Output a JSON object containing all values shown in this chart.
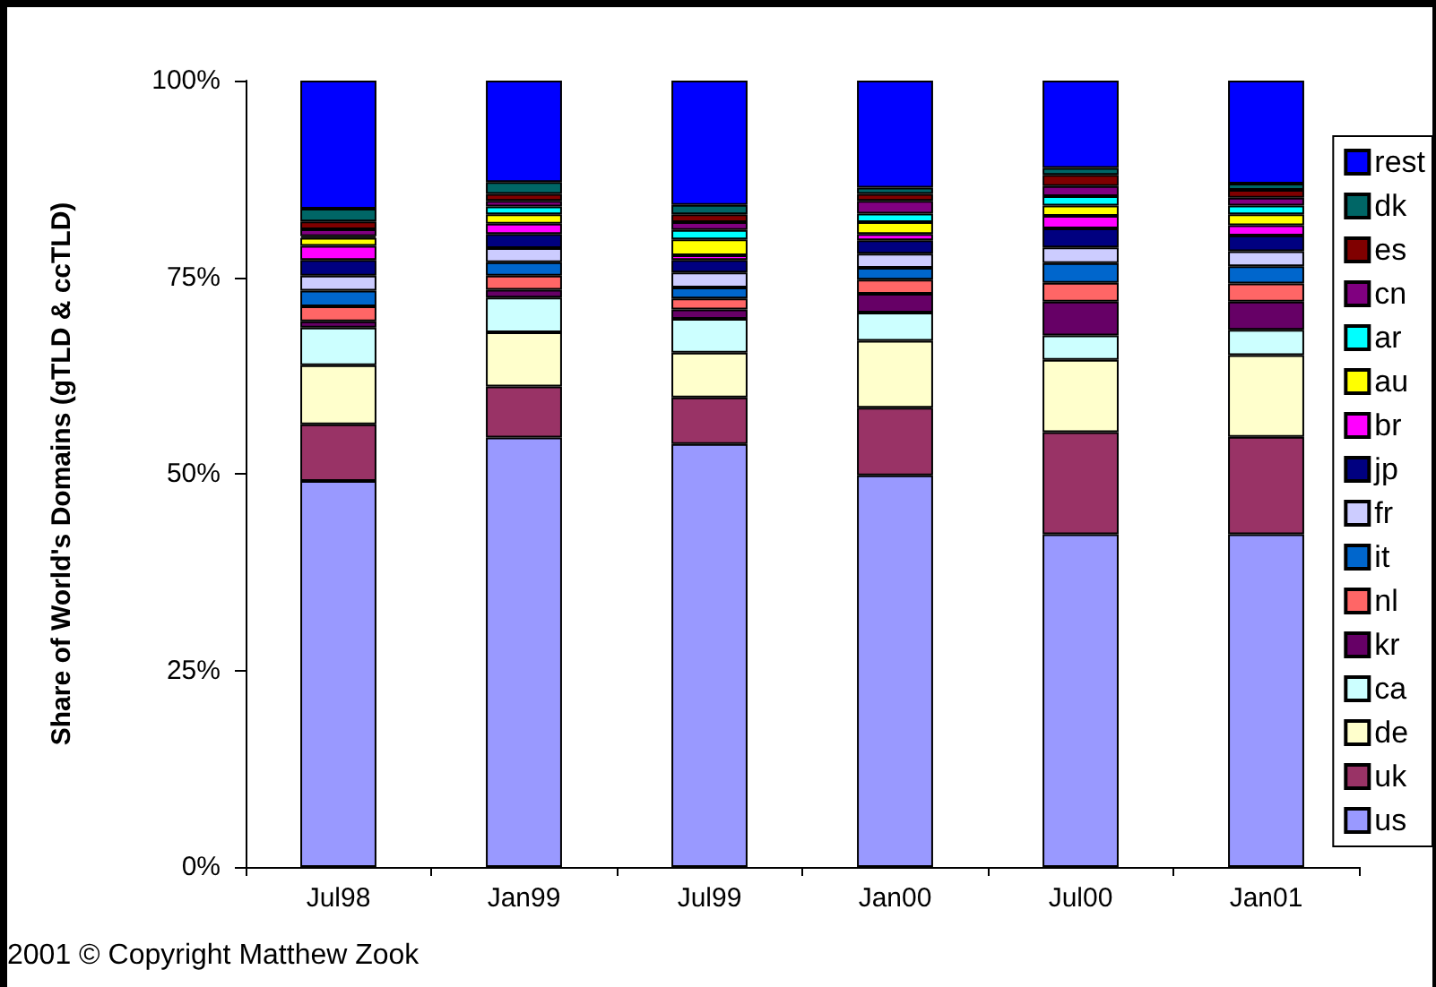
{
  "chart_data": {
    "type": "bar",
    "stacked": true,
    "ylabel": "Share of World's Domains (gTLD & ccTLD)",
    "categories": [
      "Jul98",
      "Jan99",
      "Jul99",
      "Jan00",
      "Jul00",
      "Jan01"
    ],
    "ylim": [
      0,
      100
    ],
    "yticks": [
      {
        "value": 0,
        "label": "0%"
      },
      {
        "value": 25,
        "label": "25%"
      },
      {
        "value": 50,
        "label": "50%"
      },
      {
        "value": 75,
        "label": "75%"
      },
      {
        "value": 100,
        "label": "100%"
      }
    ],
    "grid": false,
    "legend": "right",
    "annotations": [
      "2001 © Copyright Matthew Zook"
    ],
    "series": [
      {
        "name": "us",
        "color": "#9999ff",
        "values": [
          49.1,
          54.6,
          53.8,
          49.8,
          42.3,
          42.3
        ]
      },
      {
        "name": "uk",
        "color": "#993366",
        "values": [
          7.2,
          6.5,
          5.9,
          8.6,
          13.0,
          12.4
        ]
      },
      {
        "name": "de",
        "color": "#ffffcc",
        "values": [
          7.5,
          6.9,
          5.7,
          8.5,
          9.2,
          10.4
        ]
      },
      {
        "name": "ca",
        "color": "#ccffff",
        "values": [
          4.8,
          4.4,
          4.3,
          3.6,
          3.1,
          3.2
        ]
      },
      {
        "name": "kr",
        "color": "#660066",
        "values": [
          0.8,
          1.0,
          1.2,
          2.4,
          4.3,
          3.6
        ]
      },
      {
        "name": "nl",
        "color": "#ff6666",
        "values": [
          1.9,
          1.8,
          1.4,
          1.8,
          2.4,
          2.3
        ]
      },
      {
        "name": "it",
        "color": "#0066cc",
        "values": [
          2.0,
          1.7,
          1.4,
          1.5,
          2.5,
          2.2
        ]
      },
      {
        "name": "fr",
        "color": "#ccccff",
        "values": [
          1.9,
          1.8,
          1.9,
          1.8,
          2.0,
          1.9
        ]
      },
      {
        "name": "jp",
        "color": "#000080",
        "values": [
          2.0,
          1.8,
          1.6,
          1.7,
          2.4,
          2.0
        ]
      },
      {
        "name": "br",
        "color": "#ff00ff",
        "values": [
          1.8,
          1.3,
          0.6,
          0.8,
          1.6,
          1.3
        ]
      },
      {
        "name": "au",
        "color": "#ffff00",
        "values": [
          1.0,
          1.2,
          2.0,
          1.5,
          1.3,
          1.4
        ]
      },
      {
        "name": "ar",
        "color": "#00ffff",
        "values": [
          0.2,
          1.0,
          1.2,
          1.1,
          1.2,
          1.1
        ]
      },
      {
        "name": "cn",
        "color": "#800080",
        "values": [
          0.9,
          0.7,
          1.0,
          1.6,
          1.3,
          1.0
        ]
      },
      {
        "name": "es",
        "color": "#800000",
        "values": [
          1.0,
          0.9,
          1.0,
          0.9,
          1.4,
          1.0
        ]
      },
      {
        "name": "dk",
        "color": "#006666",
        "values": [
          1.6,
          1.5,
          1.2,
          0.8,
          0.9,
          0.8
        ]
      },
      {
        "name": "rest",
        "color": "#0000ff",
        "values": [
          16.3,
          12.9,
          15.8,
          13.6,
          11.1,
          13.1
        ]
      }
    ]
  }
}
